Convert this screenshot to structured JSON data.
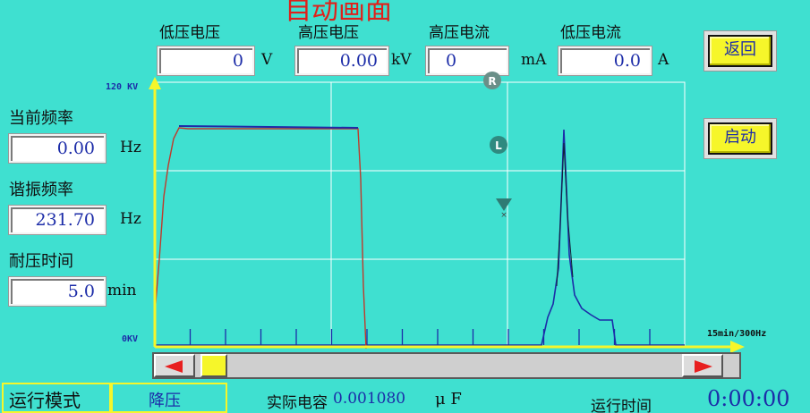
{
  "title": "自动画面",
  "header": {
    "low_voltage": {
      "label": "低压电压",
      "value": "0",
      "unit": "V"
    },
    "high_voltage": {
      "label": "高压电压",
      "value": "0.00",
      "unit": "kV"
    },
    "high_current": {
      "label": "高压电流",
      "value": "0",
      "unit": "mA"
    },
    "low_current": {
      "label": "低压电流",
      "value": "0.0",
      "unit": "A"
    }
  },
  "buttons": {
    "back": "返回",
    "start": "启动"
  },
  "left": {
    "freq": {
      "label": "当前频率",
      "value": "0.00",
      "unit": "Hz"
    },
    "resonance": {
      "label": "谐振频率",
      "value": "231.70",
      "unit": "Hz"
    },
    "withstand": {
      "label": "耐压时间",
      "value": "5.0",
      "unit": "min"
    }
  },
  "chart": {
    "y_max_label": "120 KV",
    "y_min_label": "0KV",
    "x_max_label": "15min/300Hz",
    "marker_r": "R",
    "marker_l": "L"
  },
  "bottom": {
    "mode_label": "运行模式",
    "mode_value": "降压",
    "capacitance_label": "实际电容",
    "capacitance_value": "0.001080",
    "capacitance_unit": "μ F",
    "runtime_label": "运行时间",
    "runtime_value": "0:00:00"
  },
  "colors": {
    "background": "#3fe0d0",
    "voltage_line": "#c0392b",
    "frequency_line": "#1c2ca8",
    "axis": "#f6f62a",
    "button": "#f6f62a"
  }
}
